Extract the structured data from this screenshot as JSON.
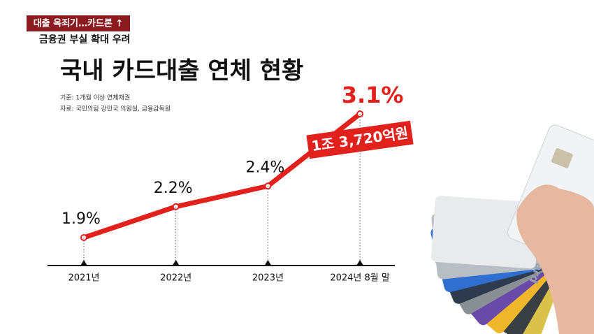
{
  "header": {
    "tag": "대출 옥죄기…카드론 ↑",
    "subtitle": "금융권 부실 확대 우려"
  },
  "chart_data": {
    "type": "line",
    "title": "국내 카드대출 연체 현황",
    "notes": [
      "기준: 1개월 이상 연체채권",
      "자료: 국민의힘 강민국 의원실, 금융감독원"
    ],
    "categories": [
      "2021년",
      "2022년",
      "2023년",
      "2024년 8월 말"
    ],
    "values": [
      1.9,
      2.2,
      2.4,
      3.1
    ],
    "value_labels": [
      "1.9%",
      "2.2%",
      "2.4%",
      "3.1%"
    ],
    "annotation": "1조 3,720억원",
    "color": "#e3211c"
  }
}
